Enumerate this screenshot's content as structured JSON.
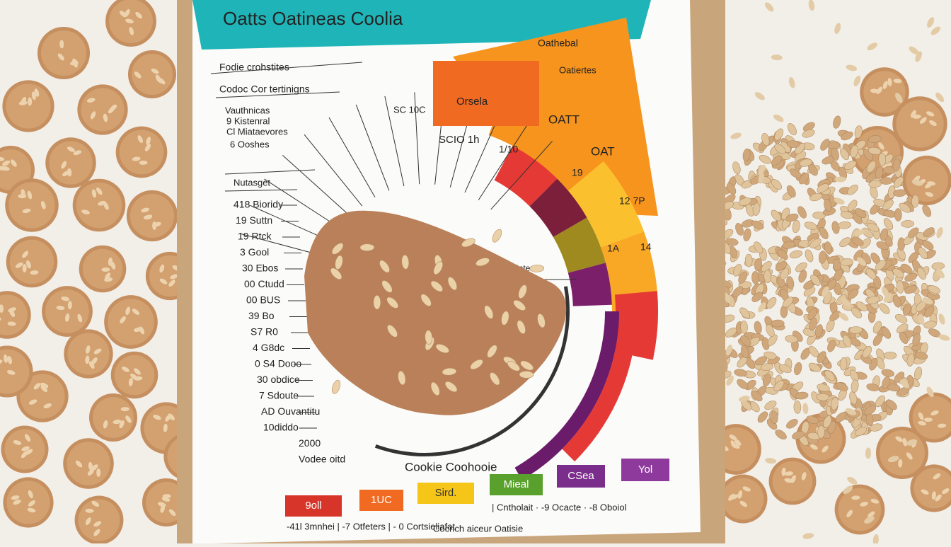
{
  "poster": {
    "title": "Oatts Oatineas Coolia",
    "side_list": {
      "heading": "Fodie crohstites",
      "subheading": "Codoc Cor tertinigns",
      "items": [
        "Vauthnicas",
        "9 Kistenral",
        "Cl Miataevores",
        "6 Ooshes"
      ],
      "section": "Nutasget"
    },
    "scale_labels": [
      "418 Bioridy",
      "19 Suttn",
      "19 Rtck",
      "3 Gool",
      "30 Ebos",
      "00 Ctudd",
      "00 BUS",
      "39 Bo",
      "S7 R0",
      "4 G8dc",
      "0 S4 Dooo",
      "30 obdice",
      "7 Sdoute",
      "AD Ouvantitu",
      "10diddo",
      "2000",
      "Vodee oitd"
    ],
    "fan": {
      "top_block": "Oathebal",
      "top_note": "Oatiertes",
      "box": "Orsela",
      "segments": [
        "OATT",
        "OAT",
        "19",
        "12 7P",
        "1A",
        "14"
      ],
      "inner": [
        "SCIO 1h",
        "1/10",
        "SC 10C",
        "emtintes"
      ]
    },
    "legend": {
      "title": "Cookie Coohooie",
      "items": [
        "9oll",
        "1UC",
        "Sird.",
        "Mieal",
        "CSea",
        "Yol"
      ]
    },
    "footer": [
      "-41l 3mnhei | -7 Otfeters | - 0 Cortsieliafat",
      "| Cntholait · -9 Ocacte · -8 Oboiol",
      "Cocnch aiceur Oatisie"
    ]
  }
}
